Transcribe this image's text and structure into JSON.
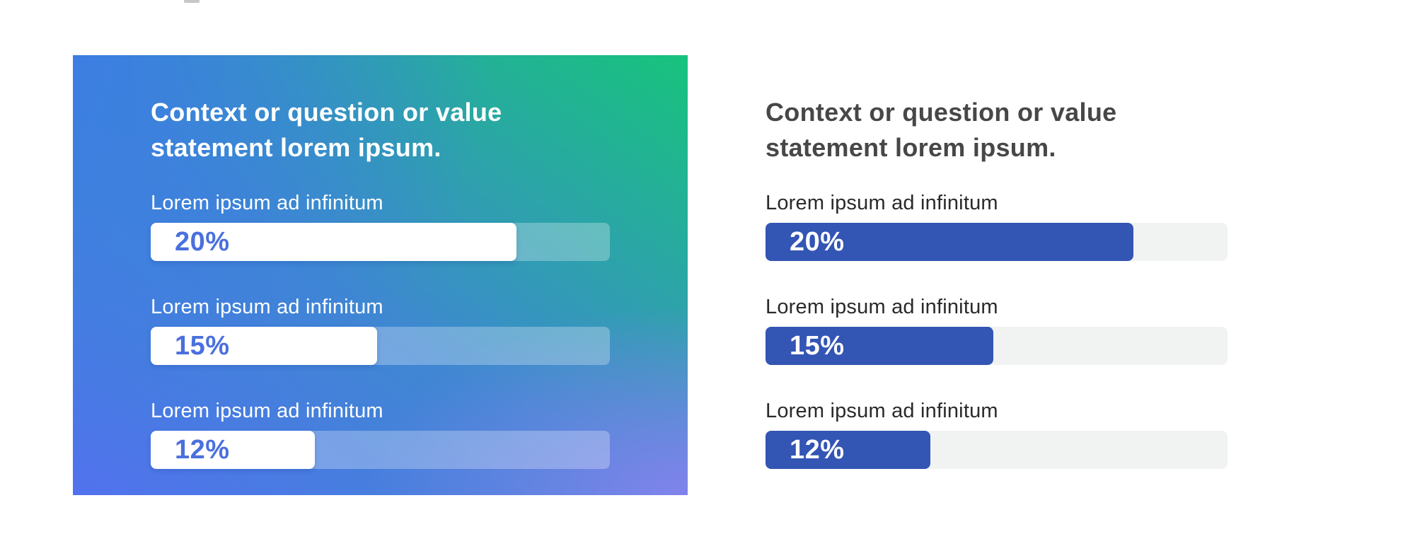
{
  "colors": {
    "grad_tl": "#3c7ee2",
    "grad_tr": "#17c37c",
    "grad_bl": "#5172ee",
    "grad_br": "#8183ec",
    "left_track": "rgba(255,255,255,0.28)",
    "left_fill": "#ffffff",
    "left_percent": "#4a6fde",
    "right_fill": "#3355b4",
    "right_track": "#f1f2f2",
    "right_title": "#474747",
    "right_label": "#2a2a2a"
  },
  "panels": [
    {
      "theme": "gradient",
      "title": "Context or question or value statement lorem ipsum.",
      "bars": [
        {
          "label": "Lorem ipsum ad infinitum",
          "value": "20%",
          "fill_percent": 79.6
        },
        {
          "label": "Lorem ipsum ad infinitum",
          "value": "15%",
          "fill_percent": 49.3
        },
        {
          "label": "Lorem ipsum ad infinitum",
          "value": "12%",
          "fill_percent": 35.7
        }
      ]
    },
    {
      "theme": "light",
      "title": "Context or question or value statement lorem ipsum.",
      "bars": [
        {
          "label": "Lorem ipsum ad infinitum",
          "value": "20%",
          "fill_percent": 79.6
        },
        {
          "label": "Lorem ipsum ad infinitum",
          "value": "15%",
          "fill_percent": 49.3
        },
        {
          "label": "Lorem ipsum ad infinitum",
          "value": "12%",
          "fill_percent": 35.7
        }
      ]
    }
  ],
  "chart_data": [
    {
      "type": "bar",
      "orientation": "horizontal",
      "variant": "progress-bars",
      "theme": "gradient-panel",
      "title": "Context or question or value statement lorem ipsum.",
      "categories": [
        "Lorem ipsum ad infinitum",
        "Lorem ipsum ad infinitum",
        "Lorem ipsum ad infinitum"
      ],
      "values": [
        20,
        15,
        12
      ],
      "unit": "%",
      "value_labels": [
        "20%",
        "15%",
        "12%"
      ],
      "bar_fill_fraction_of_track": [
        0.796,
        0.493,
        0.357
      ],
      "legend_position": "none",
      "grid": false
    },
    {
      "type": "bar",
      "orientation": "horizontal",
      "variant": "progress-bars",
      "theme": "light-panel",
      "title": "Context or question or value statement lorem ipsum.",
      "categories": [
        "Lorem ipsum ad infinitum",
        "Lorem ipsum ad infinitum",
        "Lorem ipsum ad infinitum"
      ],
      "values": [
        20,
        15,
        12
      ],
      "unit": "%",
      "value_labels": [
        "20%",
        "15%",
        "12%"
      ],
      "bar_fill_fraction_of_track": [
        0.796,
        0.493,
        0.357
      ],
      "legend_position": "none",
      "grid": false
    }
  ]
}
